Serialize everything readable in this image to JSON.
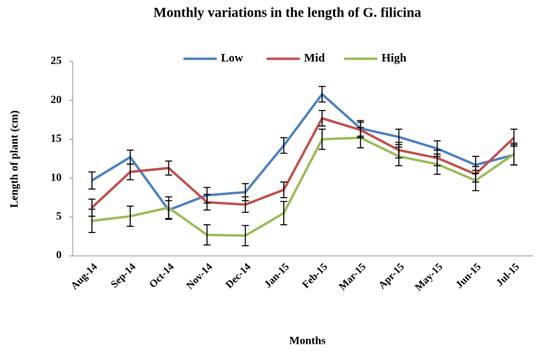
{
  "chart_data": {
    "type": "line",
    "title": "Monthly variations in the length of G. filicina",
    "x_label": "Months",
    "y_label": "Length of plant (cm)",
    "categories": [
      "Aug-14",
      "Sep-14",
      "Oct-14",
      "Nov-14",
      "Dec-14",
      "Jan-15",
      "Feb-15",
      "Mar-15",
      "Apr-15",
      "May-15",
      "Jun-15",
      "Jul-15"
    ],
    "series": [
      {
        "name": "Low",
        "color": "#4f81bd",
        "values": [
          9.7,
          12.7,
          5.9,
          7.8,
          8.2,
          14.2,
          20.8,
          16.4,
          15.3,
          13.8,
          11.7,
          13.0
        ],
        "errors": [
          1.1,
          0.9,
          1.2,
          1.0,
          1.1,
          1.0,
          1.0,
          1.0,
          1.0,
          1.0,
          1.1,
          1.3
        ]
      },
      {
        "name": "Mid",
        "color": "#c0504d",
        "values": [
          6.2,
          10.8,
          11.3,
          6.9,
          6.6,
          8.5,
          17.7,
          16.2,
          13.6,
          12.6,
          10.5,
          15.2
        ],
        "errors": [
          1.1,
          1.0,
          0.9,
          1.0,
          1.0,
          1.0,
          1.0,
          1.0,
          1.0,
          1.0,
          1.0,
          1.1
        ]
      },
      {
        "name": "High",
        "color": "#9bbb59",
        "values": [
          4.5,
          5.1,
          6.2,
          2.7,
          2.6,
          5.5,
          15.0,
          15.2,
          12.8,
          11.8,
          9.7,
          13.1
        ],
        "errors": [
          1.5,
          1.3,
          1.4,
          1.3,
          1.3,
          1.5,
          1.3,
          1.3,
          1.2,
          1.3,
          1.3,
          1.4
        ]
      }
    ],
    "error_bar_color": "#000000",
    "ylim": [
      0,
      25
    ],
    "yticks": [
      0,
      5,
      10,
      15,
      20,
      25
    ],
    "grid": false,
    "legend": "top"
  }
}
